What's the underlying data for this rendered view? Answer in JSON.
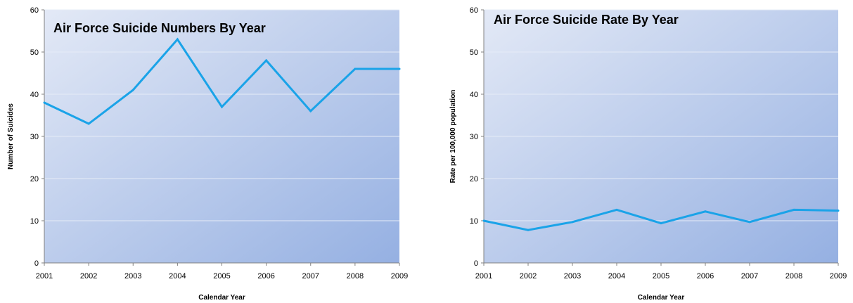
{
  "chart_data": [
    {
      "type": "line",
      "title": "Air Force Suicide  Numbers By Year",
      "xlabel": "Calendar Year",
      "ylabel": "Number of Suicides",
      "categories": [
        "2001",
        "2002",
        "2003",
        "2004",
        "2005",
        "2006",
        "2007",
        "2008",
        "2009"
      ],
      "series": [
        {
          "values": [
            38,
            33,
            41,
            53,
            37,
            48,
            36,
            46,
            46
          ]
        }
      ],
      "ylim": [
        0,
        60
      ],
      "yticks": [
        "0",
        "10",
        "20",
        "30",
        "40",
        "50",
        "60"
      ],
      "grid": true,
      "legend": "none",
      "line_color": "#1aa3e8",
      "plot_gradient": [
        "#e3e9f6",
        "#95b0e2"
      ]
    },
    {
      "type": "line",
      "title": "Air Force Suicide  Rate By Year",
      "xlabel": "Calendar Year",
      "ylabel": "Rate per 100,000 population",
      "categories": [
        "2001",
        "2002",
        "2003",
        "2004",
        "2005",
        "2006",
        "2007",
        "2008",
        "2009"
      ],
      "series": [
        {
          "values": [
            10.0,
            7.8,
            9.7,
            12.6,
            9.4,
            12.2,
            9.7,
            12.6,
            12.4
          ]
        }
      ],
      "ylim": [
        0,
        60
      ],
      "yticks": [
        "0",
        "10",
        "20",
        "30",
        "40",
        "50",
        "60"
      ],
      "grid": true,
      "legend": "none",
      "line_color": "#1aa3e8",
      "plot_gradient": [
        "#e3e9f6",
        "#95b0e2"
      ]
    }
  ]
}
